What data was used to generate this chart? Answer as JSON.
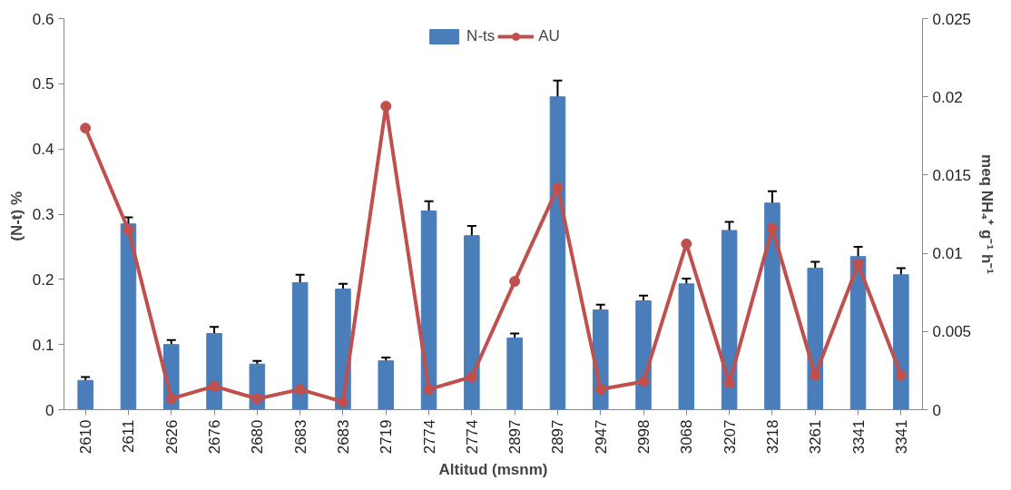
{
  "chart_data": {
    "type": "bar",
    "xlabel": "Altitud (msnm)",
    "ylabel": "(N-t)  %",
    "y2label": "meq NH₄⁺ g⁻¹ h⁻¹",
    "categories": [
      "2610",
      "2611",
      "2626",
      "2676",
      "2680",
      "2683",
      "2683",
      "2719",
      "2774",
      "2774",
      "2897",
      "2897",
      "2947",
      "2998",
      "3068",
      "3207",
      "3218",
      "3261",
      "3341",
      "3341"
    ],
    "series": [
      {
        "name": "N-ts",
        "color": "#4a7ebb",
        "values": [
          0.045,
          0.285,
          0.1,
          0.117,
          0.07,
          0.195,
          0.185,
          0.075,
          0.305,
          0.267,
          0.11,
          0.48,
          0.153,
          0.167,
          0.193,
          0.275,
          0.317,
          0.217,
          0.235,
          0.207
        ],
        "errors": [
          0.005,
          0.01,
          0.007,
          0.01,
          0.005,
          0.012,
          0.008,
          0.005,
          0.015,
          0.015,
          0.007,
          0.025,
          0.008,
          0.008,
          0.008,
          0.013,
          0.018,
          0.01,
          0.015,
          0.01
        ]
      },
      {
        "name": "AU",
        "type": "line",
        "axis": "y2",
        "color": "#c0504d",
        "marker": "circle",
        "values": [
          0.018,
          0.0115,
          0.0007,
          0.0015,
          0.0007,
          0.0013,
          0.0005,
          0.0194,
          0.0013,
          0.0021,
          0.0082,
          0.0142,
          0.0013,
          0.0018,
          0.0106,
          0.0017,
          0.0116,
          0.0022,
          0.0093,
          0.0022
        ]
      }
    ],
    "ylim": [
      0,
      0.6
    ],
    "yticks": [
      {
        "value": 0,
        "label": "0"
      },
      0.1,
      0.2,
      0.3,
      0.4,
      0.5,
      0.6
    ],
    "y2lim": [
      0,
      0.025
    ],
    "y2ticks": [
      {
        "value": 0,
        "label": "0"
      },
      0.005,
      0.01,
      0.015,
      0.02,
      0.025
    ],
    "grid": false,
    "legend": "top"
  }
}
